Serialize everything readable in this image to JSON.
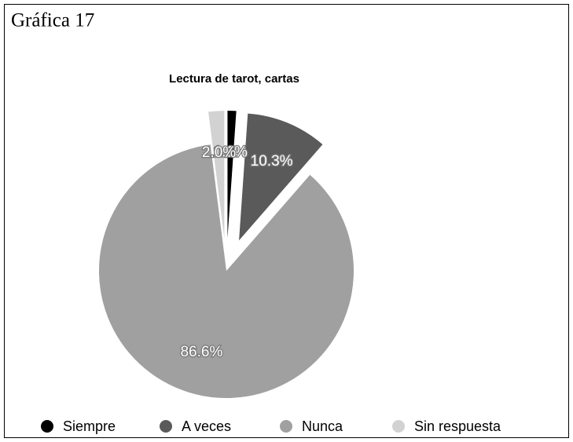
{
  "caption": "Gráfica 17",
  "chart_data": {
    "type": "pie",
    "title": "Lectura de tarot, cartas",
    "categories": [
      "Siempre",
      "A veces",
      "Nunca",
      "Sin respuesta"
    ],
    "values": [
      1.1,
      10.3,
      86.6,
      2.0
    ],
    "value_labels": [
      "1.1%",
      "10.3%",
      "86.6%",
      "2.0%"
    ],
    "colors": [
      "#000000",
      "#5a5a5a",
      "#a0a0a0",
      "#d2d2d2"
    ],
    "legend": "bottom"
  }
}
